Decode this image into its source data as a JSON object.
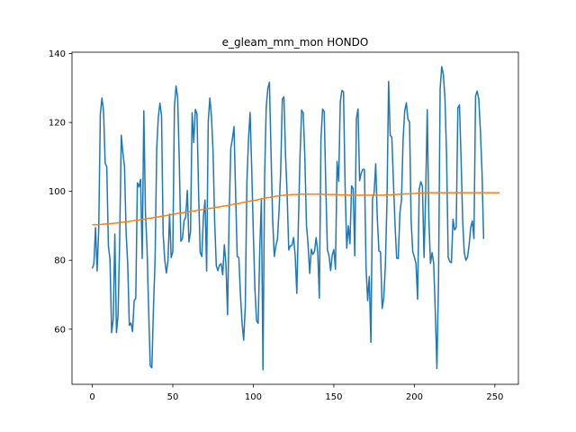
{
  "chart_data": {
    "type": "line",
    "title": "e_gleam_mm_mon HONDO",
    "xlabel": "",
    "ylabel": "",
    "xlim": [
      -12.6,
      264.6
    ],
    "ylim": [
      44.0,
      140.4
    ],
    "grid": false,
    "x_ticks": [
      0,
      50,
      100,
      150,
      200,
      250
    ],
    "y_ticks": [
      60,
      80,
      100,
      120,
      140
    ],
    "colors": {
      "series_1": "#1f77b4",
      "series_2": "#ff7f0e"
    },
    "series": [
      {
        "x0": 0,
        "values": [
          77.6,
          79.0,
          89.5,
          76.9,
          89.2,
          122.5,
          127.1,
          123.3,
          108.2,
          107.1,
          84.2,
          80.3,
          59.0,
          62.9,
          87.6,
          59.0,
          64.0,
          85.8,
          116.3,
          111.1,
          107.3,
          88.1,
          78.9,
          61.1,
          61.8,
          59.3,
          68.2,
          69.0,
          102.5,
          101.3,
          103.5,
          80.5,
          123.4,
          94.2,
          83.4,
          65.4,
          49.3,
          48.8,
          66.4,
          80.2,
          112.3,
          121.6,
          125.6,
          122.0,
          87.6,
          80.1,
          76.3,
          79.9,
          93.4,
          80.8,
          82.5,
          124.5,
          130.6,
          127.2,
          109.2,
          85.5,
          86.3,
          91.5,
          92.5,
          100.3,
          85.3,
          88.2,
          122.8,
          114.2,
          123.8,
          122.5,
          99.8,
          82.3,
          81.1,
          92.5,
          97.5,
          76.9,
          120.3,
          127.1,
          121.8,
          111.5,
          91.1,
          78.4,
          77.0,
          78.6,
          79.0,
          75.8,
          84.5,
          78.9,
          64.2,
          93.6,
          112.5,
          115.3,
          118.8,
          99.5,
          81.1,
          80.8,
          70.0,
          61.9,
          56.8,
          66.5,
          102.5,
          115.1,
          122.9,
          106.6,
          87.9,
          71.5,
          62.5,
          61.7,
          83.0,
          97.9,
          48.2,
          104.0,
          124.4,
          129.8,
          131.7,
          111.1,
          91.9,
          81.1,
          84.2,
          86.2,
          94.6,
          106.0,
          126.8,
          127.4,
          110.6,
          99.0,
          83.0,
          84.2,
          84.3,
          86.6,
          81.3,
          70.4,
          91.1,
          110.3,
          123.6,
          122.7,
          109.8,
          90.2,
          84.6,
          76.2,
          83.2,
          81.7,
          82.6,
          86.6,
          82.5,
          69.0,
          115.1,
          123.9,
          123.2,
          101.5,
          83.0,
          81.3,
          77.0,
          81.5,
          83.1,
          77.4,
          108.7,
          102.9,
          126.0,
          129.3,
          128.9,
          101.4,
          83.5,
          90.0,
          84.8,
          101.6,
          100.7,
          81.3,
          121.1,
          123.9,
          103.1,
          105.3,
          106.4,
          106.3,
          77.8,
          68.3,
          75.3,
          56.2,
          98.0,
          99.5,
          108.0,
          92.0,
          82.7,
          82.4,
          66.0,
          69.0,
          78.6,
          97.4,
          131.9,
          116.3,
          115.7,
          102.8,
          90.3,
          80.6,
          80.5,
          93.7,
          97.6,
          115.0,
          123.3,
          125.7,
          121.0,
          120.2,
          91.3,
          82.5,
          80.9,
          79.1,
          68.7,
          100.6,
          102.8,
          101.5,
          80.8,
          99.0,
          123.7,
          92.0,
          79.1,
          82.2,
          79.1,
          65.0,
          48.6,
          74.2,
          129.8,
          136.2,
          133.9,
          127.0,
          110.4,
          80.9,
          79.6,
          79.3,
          91.9,
          88.8,
          89.6,
          124.2,
          125.1,
          109.7,
          91.3,
          82.2,
          80.0,
          80.9,
          84.5,
          89.5,
          91.4,
          86.3,
          127.7,
          129.1,
          126.8,
          117.6,
          105.7,
          86.2
        ]
      },
      {
        "x0": 0,
        "values": [
          90.3,
          90.3,
          90.3,
          90.3,
          90.4,
          90.4,
          90.4,
          90.5,
          90.5,
          90.6,
          90.6,
          90.6,
          90.7,
          90.7,
          90.8,
          90.8,
          90.9,
          90.9,
          91.0,
          91.1,
          91.1,
          91.2,
          91.2,
          91.3,
          91.4,
          91.4,
          91.5,
          91.6,
          91.6,
          91.7,
          91.8,
          91.9,
          91.9,
          92.0,
          92.1,
          92.2,
          92.2,
          92.3,
          92.4,
          92.5,
          92.5,
          92.6,
          92.7,
          92.8,
          92.9,
          92.9,
          93.0,
          93.1,
          93.2,
          93.3,
          93.3,
          93.4,
          93.5,
          93.6,
          93.7,
          93.7,
          93.8,
          93.9,
          94.0,
          94.0,
          94.1,
          94.2,
          94.3,
          94.3,
          94.4,
          94.5,
          94.6,
          94.6,
          94.7,
          94.8,
          94.8,
          94.9,
          95.0,
          95.1,
          95.1,
          95.2,
          95.3,
          95.4,
          95.4,
          95.5,
          95.6,
          95.7,
          95.8,
          95.8,
          95.9,
          96.0,
          96.1,
          96.2,
          96.3,
          96.3,
          96.4,
          96.5,
          96.6,
          96.7,
          96.8,
          96.9,
          97.0,
          97.1,
          97.2,
          97.3,
          97.4,
          97.4,
          97.5,
          97.6,
          97.7,
          97.8,
          97.9,
          98.0,
          98.1,
          98.2,
          98.2,
          98.3,
          98.4,
          98.5,
          98.6,
          98.6,
          98.7,
          98.8,
          98.8,
          98.9,
          98.9,
          99.0,
          99.0,
          99.0,
          99.1,
          99.1,
          99.1,
          99.1,
          99.2,
          99.2,
          99.2,
          99.2,
          99.2,
          99.2,
          99.2,
          99.2,
          99.2,
          99.2,
          99.2,
          99.2,
          99.2,
          99.2,
          99.2,
          99.2,
          99.1,
          99.1,
          99.1,
          99.1,
          99.1,
          99.1,
          99.1,
          99.1,
          99.0,
          99.0,
          99.0,
          99.0,
          99.0,
          99.0,
          99.0,
          98.9,
          98.9,
          98.9,
          98.9,
          98.9,
          98.9,
          98.9,
          98.9,
          98.9,
          98.9,
          98.9,
          98.9,
          98.9,
          98.9,
          98.9,
          98.9,
          98.9,
          98.9,
          98.9,
          98.9,
          98.9,
          98.9,
          98.9,
          99.0,
          99.0,
          99.0,
          99.0,
          99.0,
          99.1,
          99.1,
          99.1,
          99.2,
          99.2,
          99.2,
          99.2,
          99.3,
          99.3,
          99.3,
          99.3,
          99.4,
          99.4,
          99.4,
          99.4,
          99.5,
          99.5,
          99.5,
          99.5,
          99.5,
          99.5,
          99.6,
          99.6,
          99.6,
          99.6,
          99.6,
          99.6,
          99.6,
          99.6,
          99.6,
          99.6,
          99.6,
          99.6,
          99.6,
          99.6,
          99.6,
          99.6,
          99.6,
          99.6,
          99.6,
          99.6,
          99.6,
          99.6,
          99.6,
          99.6,
          99.6,
          99.6,
          99.6,
          99.6,
          99.6,
          99.6,
          99.6,
          99.6,
          99.6,
          99.6,
          99.6,
          99.6,
          99.6,
          99.6,
          99.6,
          99.6,
          99.6,
          99.6,
          99.6,
          99.6,
          99.6,
          99.6
        ]
      }
    ]
  }
}
